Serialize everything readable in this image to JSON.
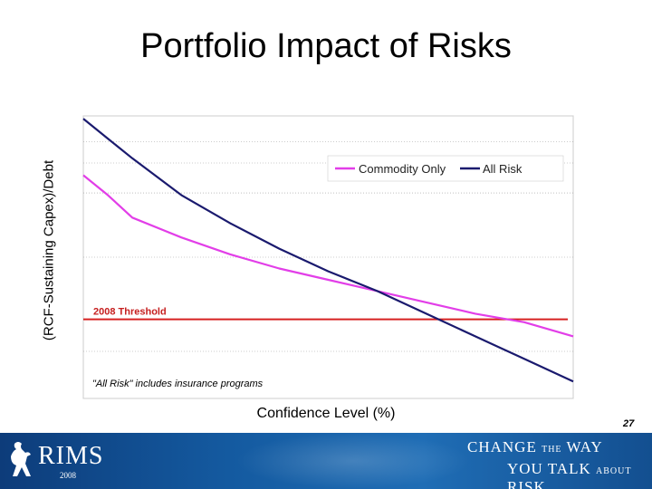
{
  "slide": {
    "title": "Portfolio Impact of Risks",
    "page_number": "27"
  },
  "footer": {
    "logo_text": "RIMS",
    "logo_year": "2008",
    "tagline_line1_big1": "CHANGE",
    "tagline_line1_small": "THE",
    "tagline_line1_big2": "WAY",
    "tagline_line2_big1": "YOU TALK",
    "tagline_line2_small": "ABOUT",
    "tagline_line2_big2": "RISK"
  },
  "colors": {
    "commodity_only": "#e23ee8",
    "all_risk": "#1a1a6e",
    "threshold": "#d62020",
    "plot_border": "#cccccc",
    "grid": "#999999"
  },
  "chart_data": {
    "type": "line",
    "title": "Portfolio Impact of Risks",
    "xlabel": "Confidence Level (%)",
    "ylabel": "(RCF-Sustaining Capex)/Debt",
    "xlim": [
      0,
      100
    ],
    "ylim": [
      0,
      100
    ],
    "grid": "horizontal dotted",
    "legend_position": "top-right",
    "x_ticks": [],
    "y_ticks": [],
    "series": [
      {
        "name": "Commodity Only",
        "color": "#e23ee8",
        "x": [
          0,
          5,
          10,
          20,
          30,
          40,
          50,
          60,
          70,
          80,
          90,
          100
        ],
        "y": [
          79,
          72,
          64,
          57,
          51,
          46,
          42,
          38,
          34,
          30,
          27,
          22
        ]
      },
      {
        "name": "All Risk",
        "color": "#1a1a6e",
        "x": [
          0,
          5,
          10,
          20,
          30,
          40,
          50,
          60,
          70,
          80,
          90,
          100
        ],
        "y": [
          99,
          92,
          85,
          72,
          62,
          53,
          45,
          38,
          30,
          22,
          14,
          6
        ]
      }
    ],
    "threshold": {
      "label": "2008 Threshold",
      "y": 28,
      "color": "#d62020"
    },
    "annotation": "\"All Risk\" includes insurance programs"
  }
}
